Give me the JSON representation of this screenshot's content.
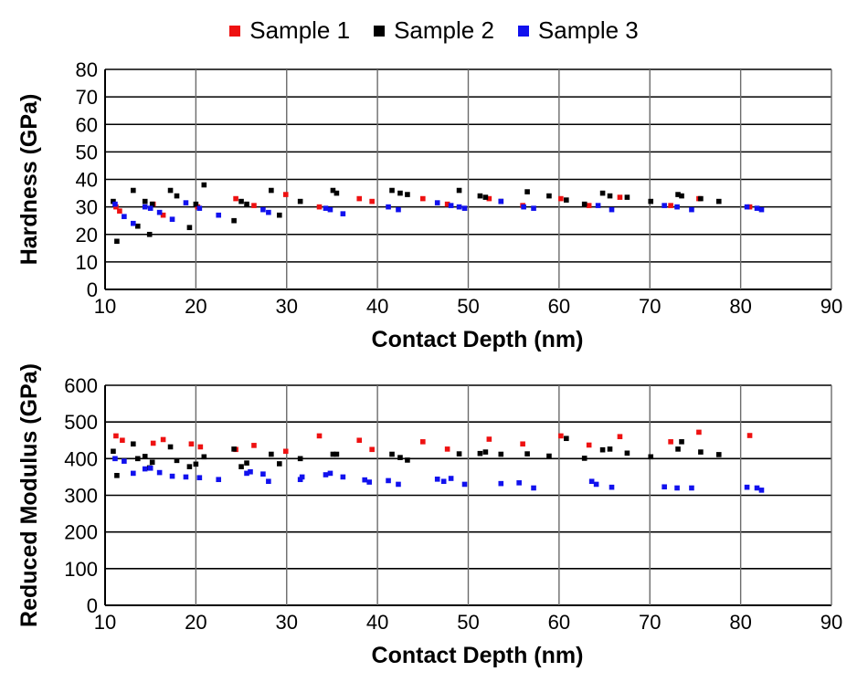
{
  "legend": [
    {
      "label": "Sample 1",
      "color": "#ee1111"
    },
    {
      "label": "Sample 2",
      "color": "#000000"
    },
    {
      "label": "Sample 3",
      "color": "#1111ee"
    }
  ],
  "chart_data": [
    {
      "type": "scatter",
      "xlabel": "Contact Depth (nm)",
      "ylabel": "Hardness (GPa)",
      "xlim": [
        10,
        90
      ],
      "ylim": [
        0,
        80
      ],
      "xticks": [
        10,
        20,
        30,
        40,
        50,
        60,
        70,
        80,
        90
      ],
      "yticks": [
        0,
        10,
        20,
        30,
        40,
        50,
        60,
        70,
        80
      ],
      "grid": true,
      "series": [
        {
          "name": "Sample 1",
          "color": "#ee1111",
          "points": [
            [
              11.2,
              30
            ],
            [
              11.6,
              28.5
            ],
            [
              15.3,
              31
            ],
            [
              16.4,
              27
            ],
            [
              20.2,
              30
            ],
            [
              24.4,
              33
            ],
            [
              26.4,
              30.5
            ],
            [
              29.9,
              34.5
            ],
            [
              33.6,
              30
            ],
            [
              38.0,
              33
            ],
            [
              39.4,
              32
            ],
            [
              45.0,
              33
            ],
            [
              47.7,
              31
            ],
            [
              52.3,
              33
            ],
            [
              56.0,
              30.5
            ],
            [
              60.2,
              33
            ],
            [
              63.3,
              30.5
            ],
            [
              66.7,
              33.5
            ],
            [
              72.3,
              30.5
            ],
            [
              75.4,
              33
            ],
            [
              81.0,
              30
            ]
          ]
        },
        {
          "name": "Sample 2",
          "color": "#000000",
          "points": [
            [
              10.9,
              32
            ],
            [
              11.3,
              17.5
            ],
            [
              13.1,
              36
            ],
            [
              13.6,
              23
            ],
            [
              14.4,
              32
            ],
            [
              14.9,
              20
            ],
            [
              15.2,
              31
            ],
            [
              17.2,
              36
            ],
            [
              17.9,
              34
            ],
            [
              19.3,
              22.5
            ],
            [
              20.0,
              31
            ],
            [
              20.9,
              38
            ],
            [
              24.2,
              25
            ],
            [
              25.0,
              32
            ],
            [
              25.6,
              31
            ],
            [
              28.3,
              36
            ],
            [
              29.2,
              27
            ],
            [
              31.5,
              32
            ],
            [
              35.1,
              36
            ],
            [
              35.5,
              35
            ],
            [
              41.6,
              36
            ],
            [
              42.5,
              35
            ],
            [
              43.3,
              34.5
            ],
            [
              49.0,
              36
            ],
            [
              51.3,
              34
            ],
            [
              51.9,
              33.5
            ],
            [
              53.6,
              32
            ],
            [
              56.5,
              35.5
            ],
            [
              58.9,
              34
            ],
            [
              60.8,
              32.5
            ],
            [
              62.8,
              31
            ],
            [
              64.8,
              35
            ],
            [
              65.6,
              34
            ],
            [
              67.5,
              33.5
            ],
            [
              70.1,
              32
            ],
            [
              73.1,
              34.5
            ],
            [
              73.5,
              34
            ],
            [
              75.6,
              33
            ],
            [
              77.6,
              32
            ]
          ]
        },
        {
          "name": "Sample 3",
          "color": "#1111ee",
          "points": [
            [
              11.1,
              31
            ],
            [
              12.1,
              26.5
            ],
            [
              13.1,
              24
            ],
            [
              14.4,
              30
            ],
            [
              15.0,
              29.5
            ],
            [
              16.0,
              28
            ],
            [
              17.4,
              25.5
            ],
            [
              18.9,
              31.5
            ],
            [
              20.4,
              29.5
            ],
            [
              22.5,
              27
            ],
            [
              27.4,
              29
            ],
            [
              28.0,
              28
            ],
            [
              34.3,
              29.5
            ],
            [
              34.8,
              29
            ],
            [
              36.2,
              27.5
            ],
            [
              41.2,
              30
            ],
            [
              42.3,
              29
            ],
            [
              46.6,
              31.5
            ],
            [
              48.1,
              30.5
            ],
            [
              49.0,
              30
            ],
            [
              49.6,
              29.5
            ],
            [
              53.6,
              32
            ],
            [
              56.1,
              30
            ],
            [
              57.2,
              29.5
            ],
            [
              64.3,
              30.5
            ],
            [
              65.8,
              29
            ],
            [
              71.6,
              30.5
            ],
            [
              73.0,
              30
            ],
            [
              74.6,
              29
            ],
            [
              80.7,
              30
            ],
            [
              81.8,
              29.5
            ],
            [
              82.3,
              29
            ]
          ]
        }
      ]
    },
    {
      "type": "scatter",
      "xlabel": "Contact Depth (nm)",
      "ylabel": "Reduced Modulus (GPa)",
      "xlim": [
        10,
        90
      ],
      "ylim": [
        0,
        600
      ],
      "xticks": [
        10,
        20,
        30,
        40,
        50,
        60,
        70,
        80,
        90
      ],
      "yticks": [
        0,
        100,
        200,
        300,
        400,
        500,
        600
      ],
      "grid": true,
      "series": [
        {
          "name": "Sample 1",
          "color": "#ee1111",
          "points": [
            [
              11.2,
              462
            ],
            [
              11.9,
              450
            ],
            [
              15.3,
              442
            ],
            [
              16.4,
              452
            ],
            [
              19.5,
              440
            ],
            [
              20.5,
              432
            ],
            [
              24.4,
              425
            ],
            [
              26.4,
              436
            ],
            [
              29.9,
              420
            ],
            [
              33.6,
              462
            ],
            [
              38.0,
              450
            ],
            [
              39.4,
              425
            ],
            [
              45.0,
              446
            ],
            [
              47.7,
              426
            ],
            [
              52.3,
              453
            ],
            [
              56.0,
              440
            ],
            [
              60.2,
              462
            ],
            [
              63.3,
              437
            ],
            [
              66.7,
              460
            ],
            [
              72.3,
              446
            ],
            [
              75.4,
              472
            ],
            [
              81.0,
              463
            ]
          ]
        },
        {
          "name": "Sample 2",
          "color": "#000000",
          "points": [
            [
              10.9,
              420
            ],
            [
              11.3,
              354
            ],
            [
              13.1,
              440
            ],
            [
              13.6,
              400
            ],
            [
              14.4,
              406
            ],
            [
              14.9,
              375
            ],
            [
              15.2,
              390
            ],
            [
              17.2,
              432
            ],
            [
              17.9,
              395
            ],
            [
              19.3,
              378
            ],
            [
              20.0,
              385
            ],
            [
              20.9,
              405
            ],
            [
              24.2,
              426
            ],
            [
              25.0,
              378
            ],
            [
              25.6,
              388
            ],
            [
              28.3,
              412
            ],
            [
              29.2,
              386
            ],
            [
              31.5,
              400
            ],
            [
              35.1,
              412
            ],
            [
              35.5,
              412
            ],
            [
              41.6,
              412
            ],
            [
              42.5,
              403
            ],
            [
              43.3,
              396
            ],
            [
              49.0,
              413
            ],
            [
              51.3,
              414
            ],
            [
              51.9,
              418
            ],
            [
              53.6,
              412
            ],
            [
              56.5,
              413
            ],
            [
              58.9,
              407
            ],
            [
              60.8,
              455
            ],
            [
              62.8,
              401
            ],
            [
              64.8,
              424
            ],
            [
              65.6,
              426
            ],
            [
              67.5,
              415
            ],
            [
              70.1,
              405
            ],
            [
              73.1,
              426
            ],
            [
              73.5,
              446
            ],
            [
              75.6,
              418
            ],
            [
              77.6,
              411
            ]
          ]
        },
        {
          "name": "Sample 3",
          "color": "#1111ee",
          "points": [
            [
              11.1,
              400
            ],
            [
              12.1,
              393
            ],
            [
              13.1,
              360
            ],
            [
              14.4,
              372
            ],
            [
              15.0,
              374
            ],
            [
              16.0,
              362
            ],
            [
              17.4,
              352
            ],
            [
              18.9,
              350
            ],
            [
              20.4,
              348
            ],
            [
              22.5,
              343
            ],
            [
              25.6,
              360
            ],
            [
              26.0,
              364
            ],
            [
              27.4,
              358
            ],
            [
              28.0,
              338
            ],
            [
              31.5,
              343
            ],
            [
              31.7,
              350
            ],
            [
              34.3,
              356
            ],
            [
              34.8,
              360
            ],
            [
              36.2,
              350
            ],
            [
              38.6,
              342
            ],
            [
              39.1,
              336
            ],
            [
              41.2,
              340
            ],
            [
              42.3,
              330
            ],
            [
              46.6,
              344
            ],
            [
              47.3,
              338
            ],
            [
              48.1,
              346
            ],
            [
              49.6,
              330
            ],
            [
              53.6,
              332
            ],
            [
              55.6,
              334
            ],
            [
              57.2,
              320
            ],
            [
              63.6,
              338
            ],
            [
              64.1,
              330
            ],
            [
              65.8,
              322
            ],
            [
              71.6,
              323
            ],
            [
              73.0,
              320
            ],
            [
              74.6,
              320
            ],
            [
              80.7,
              322
            ],
            [
              81.8,
              320
            ],
            [
              82.3,
              314
            ]
          ]
        }
      ]
    }
  ]
}
